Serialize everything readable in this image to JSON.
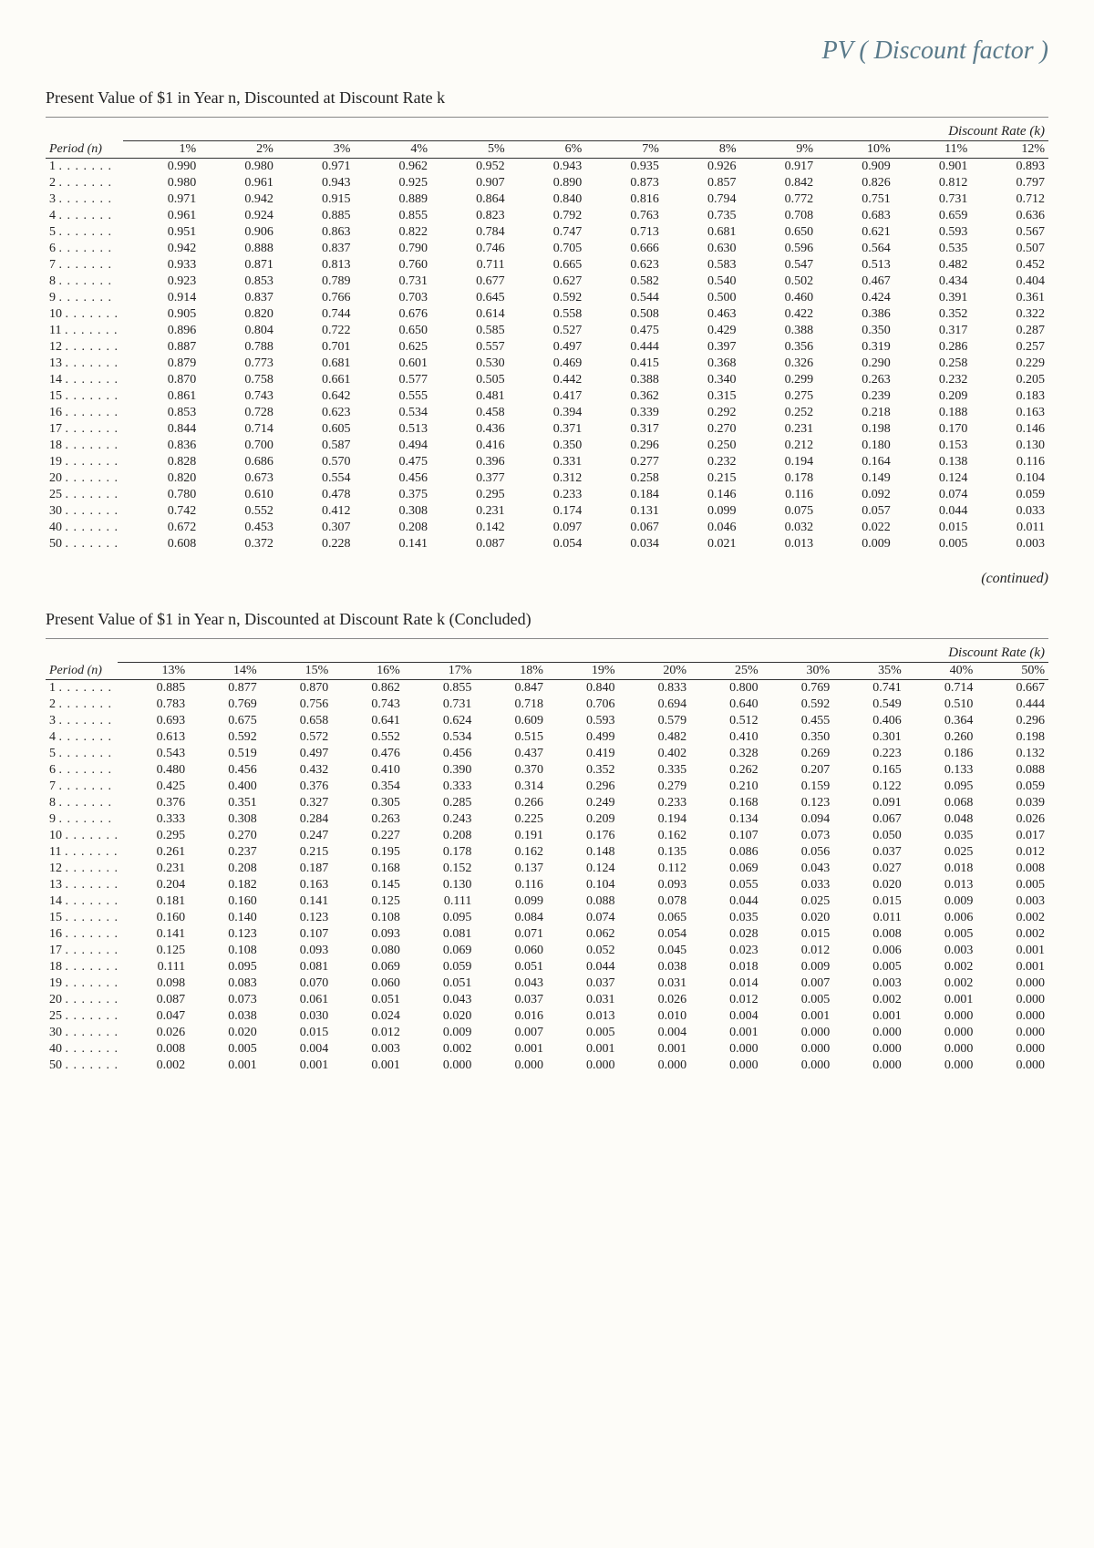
{
  "handwritten": "PV ( Discount factor )",
  "table1_title": "Present Value of $1 in Year n, Discounted at Discount Rate k",
  "table2_title": "Present Value of $1 in Year n, Discounted at Discount Rate k (Concluded)",
  "spanner": "Discount Rate (k)",
  "period_label": "Period (n)",
  "continued": "(continued)",
  "periods": [
    "1",
    "2",
    "3",
    "4",
    "5",
    "6",
    "7",
    "8",
    "9",
    "10",
    "11",
    "12",
    "13",
    "14",
    "15",
    "16",
    "17",
    "18",
    "19",
    "20",
    "25",
    "30",
    "40",
    "50"
  ],
  "group_starts": [
    0,
    5,
    10,
    15,
    20,
    21,
    22,
    23
  ],
  "table1": {
    "rates": [
      "1%",
      "2%",
      "3%",
      "4%",
      "5%",
      "6%",
      "7%",
      "8%",
      "9%",
      "10%",
      "11%",
      "12%"
    ],
    "rows": [
      [
        "0.990",
        "0.980",
        "0.971",
        "0.962",
        "0.952",
        "0.943",
        "0.935",
        "0.926",
        "0.917",
        "0.909",
        "0.901",
        "0.893"
      ],
      [
        "0.980",
        "0.961",
        "0.943",
        "0.925",
        "0.907",
        "0.890",
        "0.873",
        "0.857",
        "0.842",
        "0.826",
        "0.812",
        "0.797"
      ],
      [
        "0.971",
        "0.942",
        "0.915",
        "0.889",
        "0.864",
        "0.840",
        "0.816",
        "0.794",
        "0.772",
        "0.751",
        "0.731",
        "0.712"
      ],
      [
        "0.961",
        "0.924",
        "0.885",
        "0.855",
        "0.823",
        "0.792",
        "0.763",
        "0.735",
        "0.708",
        "0.683",
        "0.659",
        "0.636"
      ],
      [
        "0.951",
        "0.906",
        "0.863",
        "0.822",
        "0.784",
        "0.747",
        "0.713",
        "0.681",
        "0.650",
        "0.621",
        "0.593",
        "0.567"
      ],
      [
        "0.942",
        "0.888",
        "0.837",
        "0.790",
        "0.746",
        "0.705",
        "0.666",
        "0.630",
        "0.596",
        "0.564",
        "0.535",
        "0.507"
      ],
      [
        "0.933",
        "0.871",
        "0.813",
        "0.760",
        "0.711",
        "0.665",
        "0.623",
        "0.583",
        "0.547",
        "0.513",
        "0.482",
        "0.452"
      ],
      [
        "0.923",
        "0.853",
        "0.789",
        "0.731",
        "0.677",
        "0.627",
        "0.582",
        "0.540",
        "0.502",
        "0.467",
        "0.434",
        "0.404"
      ],
      [
        "0.914",
        "0.837",
        "0.766",
        "0.703",
        "0.645",
        "0.592",
        "0.544",
        "0.500",
        "0.460",
        "0.424",
        "0.391",
        "0.361"
      ],
      [
        "0.905",
        "0.820",
        "0.744",
        "0.676",
        "0.614",
        "0.558",
        "0.508",
        "0.463",
        "0.422",
        "0.386",
        "0.352",
        "0.322"
      ],
      [
        "0.896",
        "0.804",
        "0.722",
        "0.650",
        "0.585",
        "0.527",
        "0.475",
        "0.429",
        "0.388",
        "0.350",
        "0.317",
        "0.287"
      ],
      [
        "0.887",
        "0.788",
        "0.701",
        "0.625",
        "0.557",
        "0.497",
        "0.444",
        "0.397",
        "0.356",
        "0.319",
        "0.286",
        "0.257"
      ],
      [
        "0.879",
        "0.773",
        "0.681",
        "0.601",
        "0.530",
        "0.469",
        "0.415",
        "0.368",
        "0.326",
        "0.290",
        "0.258",
        "0.229"
      ],
      [
        "0.870",
        "0.758",
        "0.661",
        "0.577",
        "0.505",
        "0.442",
        "0.388",
        "0.340",
        "0.299",
        "0.263",
        "0.232",
        "0.205"
      ],
      [
        "0.861",
        "0.743",
        "0.642",
        "0.555",
        "0.481",
        "0.417",
        "0.362",
        "0.315",
        "0.275",
        "0.239",
        "0.209",
        "0.183"
      ],
      [
        "0.853",
        "0.728",
        "0.623",
        "0.534",
        "0.458",
        "0.394",
        "0.339",
        "0.292",
        "0.252",
        "0.218",
        "0.188",
        "0.163"
      ],
      [
        "0.844",
        "0.714",
        "0.605",
        "0.513",
        "0.436",
        "0.371",
        "0.317",
        "0.270",
        "0.231",
        "0.198",
        "0.170",
        "0.146"
      ],
      [
        "0.836",
        "0.700",
        "0.587",
        "0.494",
        "0.416",
        "0.350",
        "0.296",
        "0.250",
        "0.212",
        "0.180",
        "0.153",
        "0.130"
      ],
      [
        "0.828",
        "0.686",
        "0.570",
        "0.475",
        "0.396",
        "0.331",
        "0.277",
        "0.232",
        "0.194",
        "0.164",
        "0.138",
        "0.116"
      ],
      [
        "0.820",
        "0.673",
        "0.554",
        "0.456",
        "0.377",
        "0.312",
        "0.258",
        "0.215",
        "0.178",
        "0.149",
        "0.124",
        "0.104"
      ],
      [
        "0.780",
        "0.610",
        "0.478",
        "0.375",
        "0.295",
        "0.233",
        "0.184",
        "0.146",
        "0.116",
        "0.092",
        "0.074",
        "0.059"
      ],
      [
        "0.742",
        "0.552",
        "0.412",
        "0.308",
        "0.231",
        "0.174",
        "0.131",
        "0.099",
        "0.075",
        "0.057",
        "0.044",
        "0.033"
      ],
      [
        "0.672",
        "0.453",
        "0.307",
        "0.208",
        "0.142",
        "0.097",
        "0.067",
        "0.046",
        "0.032",
        "0.022",
        "0.015",
        "0.011"
      ],
      [
        "0.608",
        "0.372",
        "0.228",
        "0.141",
        "0.087",
        "0.054",
        "0.034",
        "0.021",
        "0.013",
        "0.009",
        "0.005",
        "0.003"
      ]
    ]
  },
  "table2": {
    "rates": [
      "13%",
      "14%",
      "15%",
      "16%",
      "17%",
      "18%",
      "19%",
      "20%",
      "25%",
      "30%",
      "35%",
      "40%",
      "50%"
    ],
    "rows": [
      [
        "0.885",
        "0.877",
        "0.870",
        "0.862",
        "0.855",
        "0.847",
        "0.840",
        "0.833",
        "0.800",
        "0.769",
        "0.741",
        "0.714",
        "0.667"
      ],
      [
        "0.783",
        "0.769",
        "0.756",
        "0.743",
        "0.731",
        "0.718",
        "0.706",
        "0.694",
        "0.640",
        "0.592",
        "0.549",
        "0.510",
        "0.444"
      ],
      [
        "0.693",
        "0.675",
        "0.658",
        "0.641",
        "0.624",
        "0.609",
        "0.593",
        "0.579",
        "0.512",
        "0.455",
        "0.406",
        "0.364",
        "0.296"
      ],
      [
        "0.613",
        "0.592",
        "0.572",
        "0.552",
        "0.534",
        "0.515",
        "0.499",
        "0.482",
        "0.410",
        "0.350",
        "0.301",
        "0.260",
        "0.198"
      ],
      [
        "0.543",
        "0.519",
        "0.497",
        "0.476",
        "0.456",
        "0.437",
        "0.419",
        "0.402",
        "0.328",
        "0.269",
        "0.223",
        "0.186",
        "0.132"
      ],
      [
        "0.480",
        "0.456",
        "0.432",
        "0.410",
        "0.390",
        "0.370",
        "0.352",
        "0.335",
        "0.262",
        "0.207",
        "0.165",
        "0.133",
        "0.088"
      ],
      [
        "0.425",
        "0.400",
        "0.376",
        "0.354",
        "0.333",
        "0.314",
        "0.296",
        "0.279",
        "0.210",
        "0.159",
        "0.122",
        "0.095",
        "0.059"
      ],
      [
        "0.376",
        "0.351",
        "0.327",
        "0.305",
        "0.285",
        "0.266",
        "0.249",
        "0.233",
        "0.168",
        "0.123",
        "0.091",
        "0.068",
        "0.039"
      ],
      [
        "0.333",
        "0.308",
        "0.284",
        "0.263",
        "0.243",
        "0.225",
        "0.209",
        "0.194",
        "0.134",
        "0.094",
        "0.067",
        "0.048",
        "0.026"
      ],
      [
        "0.295",
        "0.270",
        "0.247",
        "0.227",
        "0.208",
        "0.191",
        "0.176",
        "0.162",
        "0.107",
        "0.073",
        "0.050",
        "0.035",
        "0.017"
      ],
      [
        "0.261",
        "0.237",
        "0.215",
        "0.195",
        "0.178",
        "0.162",
        "0.148",
        "0.135",
        "0.086",
        "0.056",
        "0.037",
        "0.025",
        "0.012"
      ],
      [
        "0.231",
        "0.208",
        "0.187",
        "0.168",
        "0.152",
        "0.137",
        "0.124",
        "0.112",
        "0.069",
        "0.043",
        "0.027",
        "0.018",
        "0.008"
      ],
      [
        "0.204",
        "0.182",
        "0.163",
        "0.145",
        "0.130",
        "0.116",
        "0.104",
        "0.093",
        "0.055",
        "0.033",
        "0.020",
        "0.013",
        "0.005"
      ],
      [
        "0.181",
        "0.160",
        "0.141",
        "0.125",
        "0.111",
        "0.099",
        "0.088",
        "0.078",
        "0.044",
        "0.025",
        "0.015",
        "0.009",
        "0.003"
      ],
      [
        "0.160",
        "0.140",
        "0.123",
        "0.108",
        "0.095",
        "0.084",
        "0.074",
        "0.065",
        "0.035",
        "0.020",
        "0.011",
        "0.006",
        "0.002"
      ],
      [
        "0.141",
        "0.123",
        "0.107",
        "0.093",
        "0.081",
        "0.071",
        "0.062",
        "0.054",
        "0.028",
        "0.015",
        "0.008",
        "0.005",
        "0.002"
      ],
      [
        "0.125",
        "0.108",
        "0.093",
        "0.080",
        "0.069",
        "0.060",
        "0.052",
        "0.045",
        "0.023",
        "0.012",
        "0.006",
        "0.003",
        "0.001"
      ],
      [
        "0.111",
        "0.095",
        "0.081",
        "0.069",
        "0.059",
        "0.051",
        "0.044",
        "0.038",
        "0.018",
        "0.009",
        "0.005",
        "0.002",
        "0.001"
      ],
      [
        "0.098",
        "0.083",
        "0.070",
        "0.060",
        "0.051",
        "0.043",
        "0.037",
        "0.031",
        "0.014",
        "0.007",
        "0.003",
        "0.002",
        "0.000"
      ],
      [
        "0.087",
        "0.073",
        "0.061",
        "0.051",
        "0.043",
        "0.037",
        "0.031",
        "0.026",
        "0.012",
        "0.005",
        "0.002",
        "0.001",
        "0.000"
      ],
      [
        "0.047",
        "0.038",
        "0.030",
        "0.024",
        "0.020",
        "0.016",
        "0.013",
        "0.010",
        "0.004",
        "0.001",
        "0.001",
        "0.000",
        "0.000"
      ],
      [
        "0.026",
        "0.020",
        "0.015",
        "0.012",
        "0.009",
        "0.007",
        "0.005",
        "0.004",
        "0.001",
        "0.000",
        "0.000",
        "0.000",
        "0.000"
      ],
      [
        "0.008",
        "0.005",
        "0.004",
        "0.003",
        "0.002",
        "0.001",
        "0.001",
        "0.001",
        "0.000",
        "0.000",
        "0.000",
        "0.000",
        "0.000"
      ],
      [
        "0.002",
        "0.001",
        "0.001",
        "0.001",
        "0.000",
        "0.000",
        "0.000",
        "0.000",
        "0.000",
        "0.000",
        "0.000",
        "0.000",
        "0.000"
      ]
    ]
  }
}
